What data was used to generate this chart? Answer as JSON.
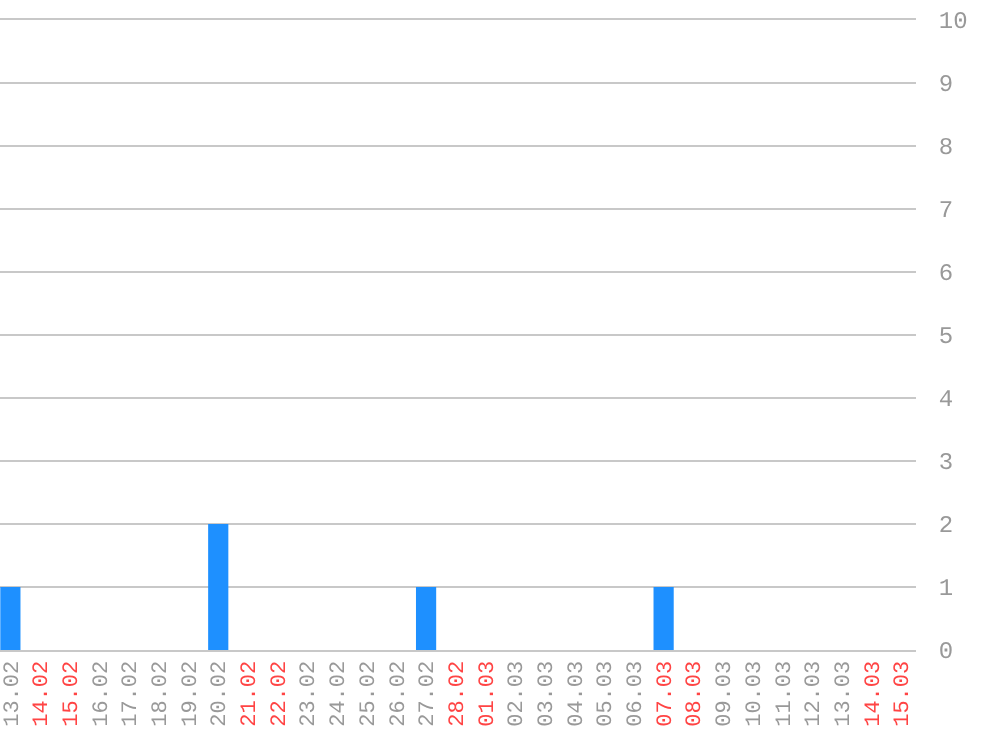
{
  "chart_data": {
    "type": "bar",
    "categories": [
      "13.02",
      "14.02",
      "15.02",
      "16.02",
      "17.02",
      "18.02",
      "19.02",
      "20.02",
      "21.02",
      "22.02",
      "23.02",
      "24.02",
      "25.02",
      "26.02",
      "27.02",
      "28.02",
      "01.03",
      "02.03",
      "03.03",
      "04.03",
      "05.03",
      "06.03",
      "07.03",
      "08.03",
      "09.03",
      "10.03",
      "11.03",
      "12.03",
      "13.03",
      "14.03",
      "15.03"
    ],
    "values": [
      1,
      0,
      0,
      0,
      0,
      0,
      0,
      2,
      0,
      0,
      0,
      0,
      0,
      0,
      1,
      0,
      0,
      0,
      0,
      0,
      0,
      0,
      1,
      0,
      0,
      0,
      0,
      0,
      0,
      0,
      0
    ],
    "color": "#1e90ff",
    "ylim": [
      0,
      10
    ],
    "yticks": [
      0,
      1,
      2,
      3,
      4,
      5,
      6,
      7,
      8,
      9,
      10
    ],
    "grid": "y"
  }
}
